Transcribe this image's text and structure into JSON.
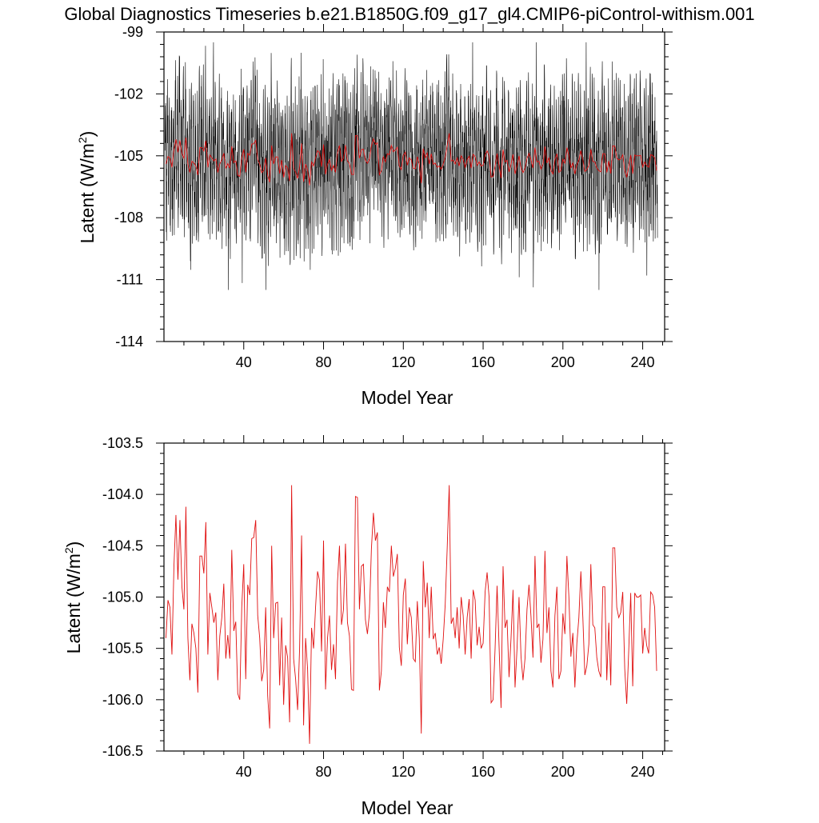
{
  "title": "Global Diagnostics Timeseries b.e21.B1850G.f09_g17_gl4.CMIP6-piControl-withism.001",
  "chart_data": [
    {
      "type": "line",
      "name": "monthly-and-annual-latent",
      "xlabel": "Model Year",
      "ylabel": "Latent (W/m",
      "ylabel_sup": "2",
      "ylabel_close": ")",
      "xlim": [
        0,
        251
      ],
      "ylim": [
        -114,
        -99
      ],
      "xticks": [
        40,
        80,
        120,
        160,
        200,
        240
      ],
      "xtick_labels": [
        "40",
        "80",
        "120",
        "160",
        "200",
        "240"
      ],
      "yticks": [
        -99,
        -102,
        -105,
        -108,
        -111,
        -114
      ],
      "ytick_labels": [
        "-99",
        "-102",
        "-105",
        "-108",
        "-111",
        "-114"
      ],
      "series": [
        {
          "name": "monthly",
          "color": "#000000",
          "note": "dense monthly series oscillating roughly between -111.5 and -99.5",
          "values_range": [
            -111.5,
            -99.5
          ]
        },
        {
          "name": "annual",
          "color": "#e01010",
          "note": "annual mean, same as bottom panel"
        }
      ]
    },
    {
      "type": "line",
      "name": "annual-latent",
      "xlabel": "Model Year",
      "ylabel": "Latent (W/m",
      "ylabel_sup": "2",
      "ylabel_close": ")",
      "xlim": [
        0,
        251
      ],
      "ylim": [
        -106.5,
        -103.5
      ],
      "xticks": [
        40,
        80,
        120,
        160,
        200,
        240
      ],
      "xtick_labels": [
        "40",
        "80",
        "120",
        "160",
        "200",
        "240"
      ],
      "yticks": [
        -103.5,
        -104.0,
        -104.5,
        -105.0,
        -105.5,
        -106.0,
        -106.5
      ],
      "ytick_labels": [
        "-103.5",
        "-104.0",
        "-104.5",
        "-105.0",
        "-105.5",
        "-106.0",
        "-106.5"
      ],
      "series": [
        {
          "name": "annual",
          "color": "#e01010",
          "x_start": 1,
          "values": [
            -105.4,
            -105.03,
            -105.1,
            -105.56,
            -104.7,
            -104.2,
            -104.83,
            -104.25,
            -104.9,
            -105.12,
            -104.12,
            -105.4,
            -105.81,
            -105.26,
            -105.35,
            -105.5,
            -105.93,
            -104.6,
            -104.6,
            -104.77,
            -104.27,
            -105.56,
            -104.96,
            -105.1,
            -105.25,
            -105.15,
            -105.81,
            -105.38,
            -105.2,
            -104.87,
            -105.6,
            -105.37,
            -105.6,
            -104.54,
            -105.33,
            -105.24,
            -105.94,
            -106.0,
            -105.1,
            -104.68,
            -105.8,
            -104.88,
            -104.98,
            -104.43,
            -104.42,
            -104.25,
            -105.18,
            -105.4,
            -105.82,
            -105.71,
            -105.1,
            -105.96,
            -106.28,
            -104.5,
            -105.4,
            -105.06,
            -105.05,
            -105.86,
            -105.2,
            -106.05,
            -105.47,
            -105.59,
            -106.22,
            -103.91,
            -105.6,
            -105.8,
            -106.1,
            -105.5,
            -104.4,
            -106.25,
            -105.4,
            -105.7,
            -106.43,
            -105.3,
            -105.5,
            -105.1,
            -104.75,
            -104.84,
            -105.53,
            -104.45,
            -105.9,
            -105.4,
            -105.18,
            -105.71,
            -105.46,
            -105.8,
            -104.85,
            -104.5,
            -105.27,
            -105.12,
            -104.48,
            -105.25,
            -105.38,
            -105.9,
            -105.91,
            -104.02,
            -104.03,
            -105.12,
            -104.7,
            -104.68,
            -105.22,
            -105.36,
            -105.16,
            -104.53,
            -104.18,
            -104.45,
            -104.37,
            -105.91,
            -105.72,
            -105.05,
            -105.3,
            -104.9,
            -104.95,
            -104.5,
            -104.8,
            -104.72,
            -104.58,
            -105.49,
            -105.67,
            -104.98,
            -104.82,
            -105.46,
            -105.1,
            -105.2,
            -105.6,
            -105.63,
            -105.04,
            -105.4,
            -106.33,
            -104.65,
            -105.1,
            -104.86,
            -105.4,
            -104.9,
            -105.41,
            -105.35,
            -105.56,
            -105.49,
            -105.65,
            -105.41,
            -105.07,
            -104.52,
            -103.91,
            -105.26,
            -105.2,
            -105.4,
            -105.1,
            -105.5,
            -105.0,
            -105.18,
            -105.56,
            -105.2,
            -105.02,
            -105.6,
            -104.93,
            -105.03,
            -105.47,
            -105.29,
            -105.5,
            -105.45,
            -104.95,
            -104.76,
            -105.0,
            -106.03,
            -106.0,
            -105.5,
            -104.89,
            -105.48,
            -106.08,
            -104.7,
            -105.3,
            -105.22,
            -105.78,
            -105.4,
            -104.93,
            -105.88,
            -105.5,
            -105.0,
            -105.58,
            -105.81,
            -105.6,
            -105.12,
            -104.88,
            -105.19,
            -105.59,
            -104.6,
            -105.3,
            -105.26,
            -105.64,
            -105.41,
            -104.55,
            -105.35,
            -105.1,
            -105.72,
            -105.88,
            -105.18,
            -104.9,
            -105.8,
            -105.72,
            -105.16,
            -105.36,
            -104.6,
            -105.0,
            -105.58,
            -105.35,
            -105.88,
            -105.45,
            -105.2,
            -104.75,
            -105.2,
            -105.76,
            -105.67,
            -105.46,
            -104.68,
            -105.27,
            -105.3,
            -105.59,
            -105.72,
            -105.78,
            -104.9,
            -104.9,
            -105.81,
            -105.25,
            -105.86,
            -104.52,
            -104.52,
            -105.1,
            -105.2,
            -105.15,
            -104.95,
            -105.7,
            -106.04,
            -105.52,
            -104.96,
            -105.87,
            -104.96,
            -105.0,
            -105.0,
            -104.98,
            -105.55,
            -105.3,
            -105.47,
            -105.55,
            -104.95,
            -104.98,
            -105.1,
            -105.72
          ]
        }
      ]
    }
  ]
}
